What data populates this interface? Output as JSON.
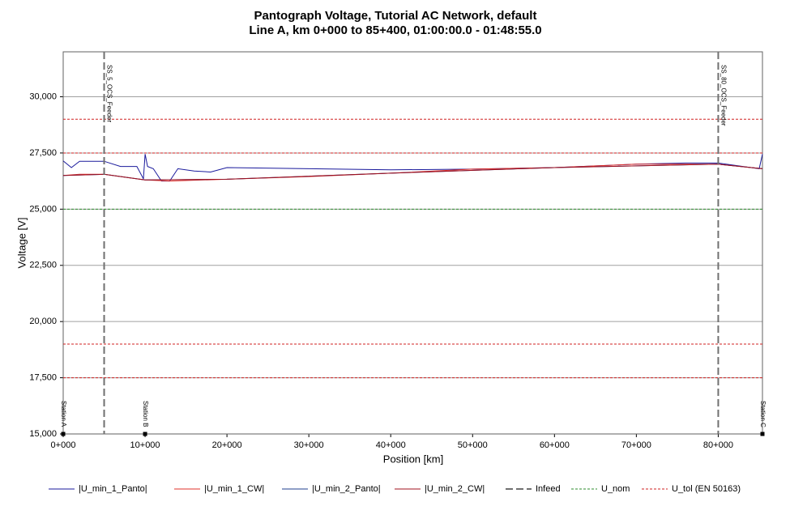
{
  "chart_data": {
    "type": "line",
    "title": "Pantograph Voltage, Tutorial AC Network, default",
    "subtitle": "Line A, km 0+000 to 85+400, 01:00:00.0 - 01:48:55.0",
    "x_label": "Position [km]",
    "y_label": "Voltage [V]",
    "xlim": [
      0,
      85400
    ],
    "ylim": [
      15000,
      32000
    ],
    "xticks": [
      {
        "value": 0,
        "label": "0+000"
      },
      {
        "value": 10000,
        "label": "10+000"
      },
      {
        "value": 20000,
        "label": "20+000"
      },
      {
        "value": 30000,
        "label": "30+000"
      },
      {
        "value": 40000,
        "label": "40+000"
      },
      {
        "value": 50000,
        "label": "50+000"
      },
      {
        "value": 60000,
        "label": "60+000"
      },
      {
        "value": 70000,
        "label": "70+000"
      },
      {
        "value": 80000,
        "label": "80+000"
      }
    ],
    "yticks": [
      {
        "value": 15000,
        "label": "15,000"
      },
      {
        "value": 17500,
        "label": "17,500"
      },
      {
        "value": 20000,
        "label": "20,000"
      },
      {
        "value": 22500,
        "label": "22,500"
      },
      {
        "value": 25000,
        "label": "25,000"
      },
      {
        "value": 27500,
        "label": "27,500"
      },
      {
        "value": 30000,
        "label": "30,000"
      }
    ],
    "grid": true,
    "series": [
      {
        "name": "|U_min_1_Panto|",
        "color": "#1a1a9c",
        "x": [
          0,
          1000,
          2000,
          5000,
          7000,
          9000,
          9800,
          10000,
          10300,
          11000,
          12000,
          13000,
          14000,
          16000,
          18000,
          20000,
          30000,
          40000,
          50000,
          60000,
          70000,
          76000,
          80000,
          84000,
          85000,
          85400
        ],
        "values": [
          27150,
          26850,
          27130,
          27130,
          26900,
          26900,
          26350,
          27450,
          26900,
          26800,
          26250,
          26250,
          26800,
          26700,
          26650,
          26850,
          26800,
          26750,
          26780,
          26850,
          27000,
          27050,
          27050,
          26850,
          26800,
          27450
        ]
      },
      {
        "name": "|U_min_1_CW|",
        "color": "#e0302a",
        "x": [
          0,
          2000,
          5000,
          8000,
          10000,
          13000,
          20000,
          30000,
          40000,
          50000,
          60000,
          70000,
          80000,
          85400
        ],
        "values": [
          26500,
          26550,
          26550,
          26400,
          26300,
          26250,
          26330,
          26450,
          26600,
          26780,
          26850,
          27000,
          27000,
          26800
        ]
      },
      {
        "name": "|U_min_2_Panto|",
        "color": "#1f3f8f",
        "x": [
          0,
          5000,
          10000,
          20000,
          40000,
          60000,
          80000,
          85400
        ],
        "values": [
          26500,
          26550,
          26300,
          26330,
          26600,
          26850,
          27000,
          26800
        ]
      },
      {
        "name": "|U_min_2_CW|",
        "color": "#a0101e",
        "x": [
          0,
          5000,
          10000,
          20000,
          40000,
          60000,
          80000,
          85400
        ],
        "values": [
          26500,
          26550,
          26300,
          26330,
          26600,
          26850,
          27000,
          26800
        ]
      }
    ],
    "infeed": {
      "name": "Infeed",
      "color": "#707070",
      "x": [
        5000,
        80000
      ],
      "labels": [
        "SS_5_OCS_Feeder",
        "SS_80_OCS_Feeder"
      ]
    },
    "u_nom": {
      "name": "U_nom",
      "color": "#2e8b2e",
      "values": [
        25000
      ]
    },
    "u_tol": {
      "name": "U_tol (EN 50163)",
      "color": "#d02020",
      "values": [
        29000,
        27500,
        19000,
        17500
      ]
    },
    "stations": {
      "x": [
        0,
        10000,
        85400
      ],
      "labels": [
        "Station A",
        "Station B",
        "Station C"
      ]
    }
  }
}
